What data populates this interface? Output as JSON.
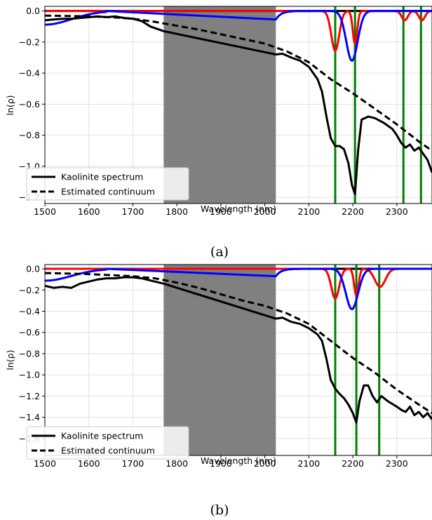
{
  "chart_data": [
    {
      "type": "line",
      "caption": "(a)",
      "xlabel": "Wavelength (nm)",
      "ylabel": "ln(ρ)",
      "xlim": [
        1500,
        2380
      ],
      "ylim": [
        -1.24,
        0.03
      ],
      "xticks": [
        "1500",
        "1600",
        "1700",
        "1800",
        "1900",
        "2000",
        "2100",
        "2200",
        "2300"
      ],
      "yticks": [
        "0.0",
        "−0.2",
        "−0.4",
        "−0.6",
        "−0.8",
        "−1.0",
        "−1.2"
      ],
      "grid": true,
      "legend_position": "bottom-left",
      "shaded_region": [
        1770,
        2025
      ],
      "vlines": [
        2160,
        2205,
        2315,
        2355
      ],
      "colors": {
        "spectrum": "#000000",
        "continuum": "#000000",
        "gauss_red": "#ff0000",
        "gauss_blue": "#0000ff",
        "vline": "#008000",
        "shade": "#808080"
      },
      "series": [
        {
          "name": "Kaolinite spectrum",
          "x": [
            1500,
            1520,
            1540,
            1560,
            1580,
            1600,
            1620,
            1640,
            1660,
            1680,
            1700,
            1720,
            1740,
            1760,
            1770,
            2025,
            2040,
            2060,
            2080,
            2100,
            2120,
            2130,
            2140,
            2150,
            2160,
            2170,
            2180,
            2190,
            2198,
            2205,
            2212,
            2220,
            2235,
            2250,
            2270,
            2290,
            2300,
            2310,
            2320,
            2330,
            2340,
            2350,
            2360,
            2370,
            2380
          ],
          "y": [
            -0.06,
            -0.055,
            -0.05,
            -0.05,
            -0.045,
            -0.04,
            -0.035,
            -0.04,
            -0.035,
            -0.045,
            -0.05,
            -0.065,
            -0.1,
            -0.12,
            -0.13,
            -0.28,
            -0.275,
            -0.3,
            -0.32,
            -0.36,
            -0.44,
            -0.52,
            -0.68,
            -0.82,
            -0.87,
            -0.87,
            -0.89,
            -0.98,
            -1.12,
            -1.18,
            -0.9,
            -0.7,
            -0.68,
            -0.69,
            -0.72,
            -0.76,
            -0.8,
            -0.85,
            -0.88,
            -0.86,
            -0.9,
            -0.88,
            -0.92,
            -0.96,
            -1.04
          ]
        },
        {
          "name": "Estimated continuum",
          "x": [
            1500,
            1550,
            1600,
            1650,
            1700,
            1750,
            1800,
            1850,
            1900,
            1950,
            2000,
            2050,
            2100,
            2150,
            2200,
            2250,
            2300,
            2350,
            2380
          ],
          "y": [
            -0.03,
            -0.032,
            -0.035,
            -0.04,
            -0.05,
            -0.07,
            -0.095,
            -0.12,
            -0.15,
            -0.18,
            -0.21,
            -0.26,
            -0.33,
            -0.44,
            -0.53,
            -0.63,
            -0.73,
            -0.84,
            -0.9
          ]
        }
      ],
      "bands": [
        {
          "color": "red",
          "center": 2160,
          "depth": 0.255,
          "width": 9
        },
        {
          "color": "red",
          "center": 2205,
          "depth": 0.21,
          "width": 5
        },
        {
          "color": "red",
          "center": 2318,
          "depth": 0.06,
          "width": 7
        },
        {
          "color": "red",
          "center": 2357,
          "depth": 0.06,
          "width": 7
        },
        {
          "color": "blue",
          "center": 2198,
          "depth": 0.32,
          "width": 13
        }
      ],
      "blue_plateau": {
        "from": 1640,
        "to": 2025,
        "level": -0.055
      }
    },
    {
      "type": "line",
      "caption": "(b)",
      "xlabel": "Wavelength (nm)",
      "ylabel": "ln(ρ)",
      "xlim": [
        1500,
        2380
      ],
      "ylim": [
        -1.76,
        0.04
      ],
      "xticks": [
        "1500",
        "1600",
        "1700",
        "1800",
        "1900",
        "2000",
        "2100",
        "2200",
        "2300"
      ],
      "yticks": [
        "0.0",
        "−0.2",
        "−0.4",
        "−0.6",
        "−0.8",
        "−1.0",
        "−1.2",
        "−1.4",
        "−1.6"
      ],
      "grid": true,
      "legend_position": "bottom-left",
      "shaded_region": [
        1770,
        2025
      ],
      "vlines": [
        2160,
        2208,
        2260
      ],
      "colors": {
        "spectrum": "#000000",
        "continuum": "#000000",
        "gauss_red": "#ff0000",
        "gauss_blue": "#0000ff",
        "vline": "#008000",
        "shade": "#808080"
      },
      "series": [
        {
          "name": "Kaolinite spectrum",
          "x": [
            1500,
            1520,
            1540,
            1560,
            1580,
            1600,
            1620,
            1640,
            1660,
            1680,
            1700,
            1720,
            1740,
            1760,
            1770,
            2025,
            2040,
            2060,
            2080,
            2100,
            2120,
            2130,
            2140,
            2150,
            2160,
            2170,
            2180,
            2190,
            2200,
            2208,
            2215,
            2225,
            2235,
            2245,
            2255,
            2265,
            2280,
            2300,
            2310,
            2320,
            2330,
            2340,
            2350,
            2360,
            2370,
            2380
          ],
          "y": [
            -0.16,
            -0.18,
            -0.17,
            -0.18,
            -0.14,
            -0.12,
            -0.1,
            -0.09,
            -0.09,
            -0.08,
            -0.08,
            -0.09,
            -0.11,
            -0.13,
            -0.14,
            -0.47,
            -0.46,
            -0.5,
            -0.52,
            -0.56,
            -0.62,
            -0.68,
            -0.85,
            -1.05,
            -1.13,
            -1.18,
            -1.22,
            -1.28,
            -1.36,
            -1.45,
            -1.25,
            -1.1,
            -1.1,
            -1.2,
            -1.26,
            -1.2,
            -1.25,
            -1.3,
            -1.33,
            -1.35,
            -1.3,
            -1.38,
            -1.35,
            -1.4,
            -1.36,
            -1.42
          ]
        },
        {
          "name": "Estimated continuum",
          "x": [
            1500,
            1550,
            1600,
            1650,
            1700,
            1750,
            1800,
            1850,
            1900,
            1950,
            2000,
            2050,
            2100,
            2150,
            2200,
            2250,
            2300,
            2350,
            2380
          ],
          "y": [
            -0.04,
            -0.045,
            -0.05,
            -0.06,
            -0.07,
            -0.09,
            -0.13,
            -0.18,
            -0.24,
            -0.3,
            -0.35,
            -0.42,
            -0.52,
            -0.68,
            -0.84,
            -0.98,
            -1.14,
            -1.28,
            -1.36
          ]
        }
      ],
      "bands": [
        {
          "color": "red",
          "center": 2160,
          "depth": 0.28,
          "width": 9
        },
        {
          "color": "red",
          "center": 2208,
          "depth": 0.25,
          "width": 5
        },
        {
          "color": "red",
          "center": 2262,
          "depth": 0.17,
          "width": 12
        },
        {
          "color": "blue",
          "center": 2198,
          "depth": 0.38,
          "width": 14
        }
      ],
      "blue_plateau": {
        "from": 1640,
        "to": 2025,
        "level": -0.07
      }
    }
  ]
}
